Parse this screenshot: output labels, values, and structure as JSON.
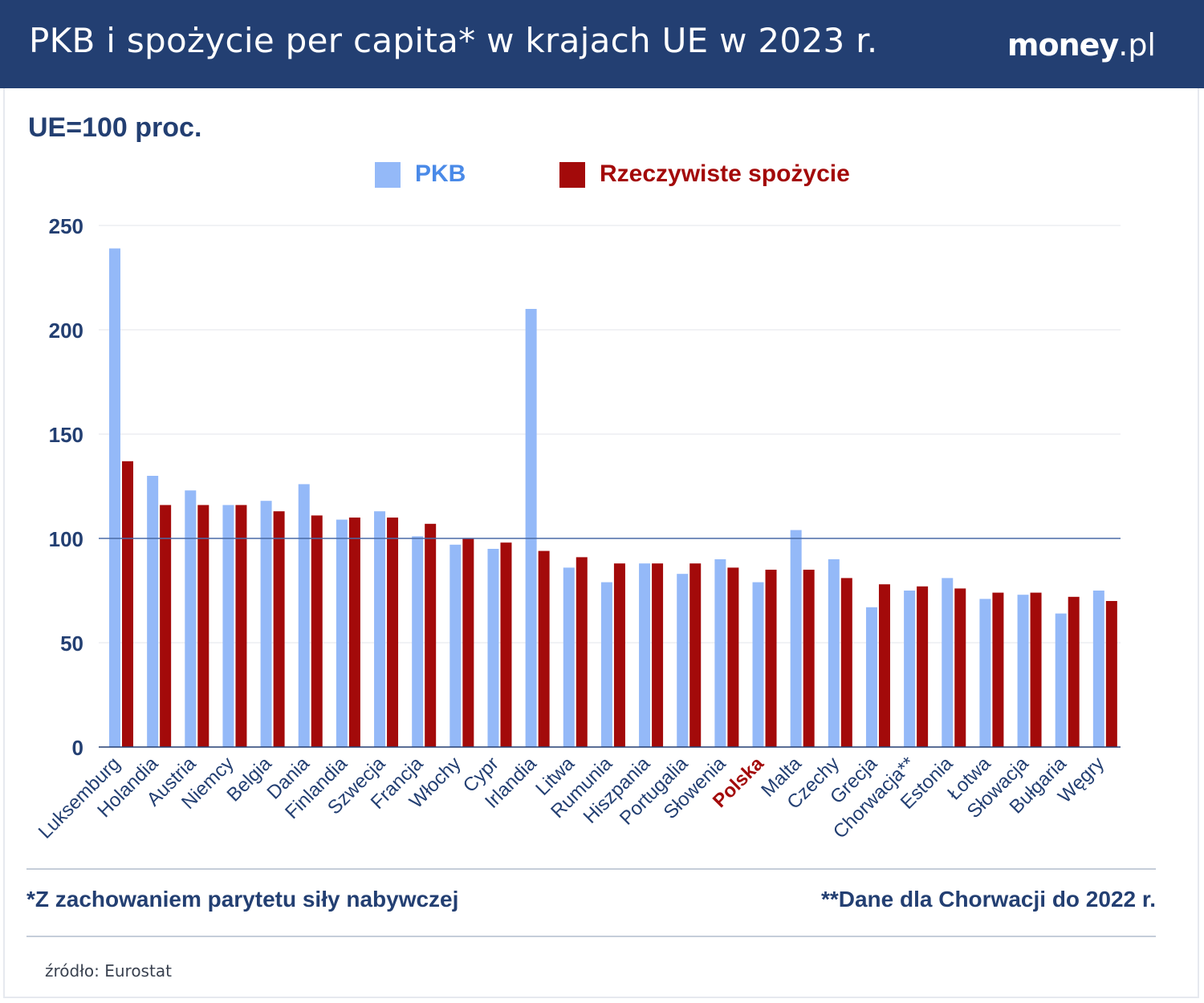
{
  "header": {
    "title": "PKB i spożycie per capita* w krajach UE w 2023 r.",
    "brand_main": "money",
    "brand_suffix": ".pl"
  },
  "subtitle": "UE=100 proc.",
  "legend": [
    {
      "label": "PKB",
      "color": "#94b9f8",
      "text_color": "#4a8ae8"
    },
    {
      "label": "Rzeczywiste spożycie",
      "color": "#a30a0a",
      "text_color": "#a30a0a"
    }
  ],
  "footnotes": {
    "left": "*Z zachowaniem parytetu siły nabywczej",
    "right": "**Dane dla Chorwacji do 2022 r."
  },
  "source": "źródło: Eurostat",
  "colors": {
    "header_bg": "#233f72",
    "axis_text": "#233f72",
    "highlight": "#a30a0a",
    "reference_line": "#4a6aa6"
  },
  "chart_data": {
    "type": "bar",
    "categories": [
      "Luksemburg",
      "Holandia",
      "Austria",
      "Niemcy",
      "Belgia",
      "Dania",
      "Finlandia",
      "Szwecja",
      "Francja",
      "Włochy",
      "Cypr",
      "Irlandia",
      "Litwa",
      "Rumunia",
      "Hiszpania",
      "Portugalia",
      "Słowenia",
      "Polska",
      "Malta",
      "Czechy",
      "Grecja",
      "Chorwacja**",
      "Estonia",
      "Łotwa",
      "Słowacja",
      "Bułgaria",
      "Węgry"
    ],
    "highlighted_category": "Polska",
    "series": [
      {
        "name": "PKB",
        "values": [
          239,
          130,
          123,
          116,
          118,
          126,
          109,
          113,
          101,
          97,
          95,
          210,
          86,
          79,
          88,
          83,
          90,
          79,
          104,
          90,
          67,
          75,
          81,
          71,
          73,
          64,
          75
        ]
      },
      {
        "name": "Rzeczywiste spożycie",
        "values": [
          137,
          116,
          116,
          116,
          113,
          111,
          110,
          110,
          107,
          100,
          98,
          94,
          91,
          88,
          88,
          88,
          86,
          85,
          85,
          81,
          78,
          77,
          76,
          74,
          74,
          72,
          70
        ]
      }
    ],
    "yticks": [
      0,
      50,
      100,
      150,
      200,
      250
    ],
    "ylim": [
      0,
      250
    ],
    "reference_line": 100,
    "grid": true
  }
}
